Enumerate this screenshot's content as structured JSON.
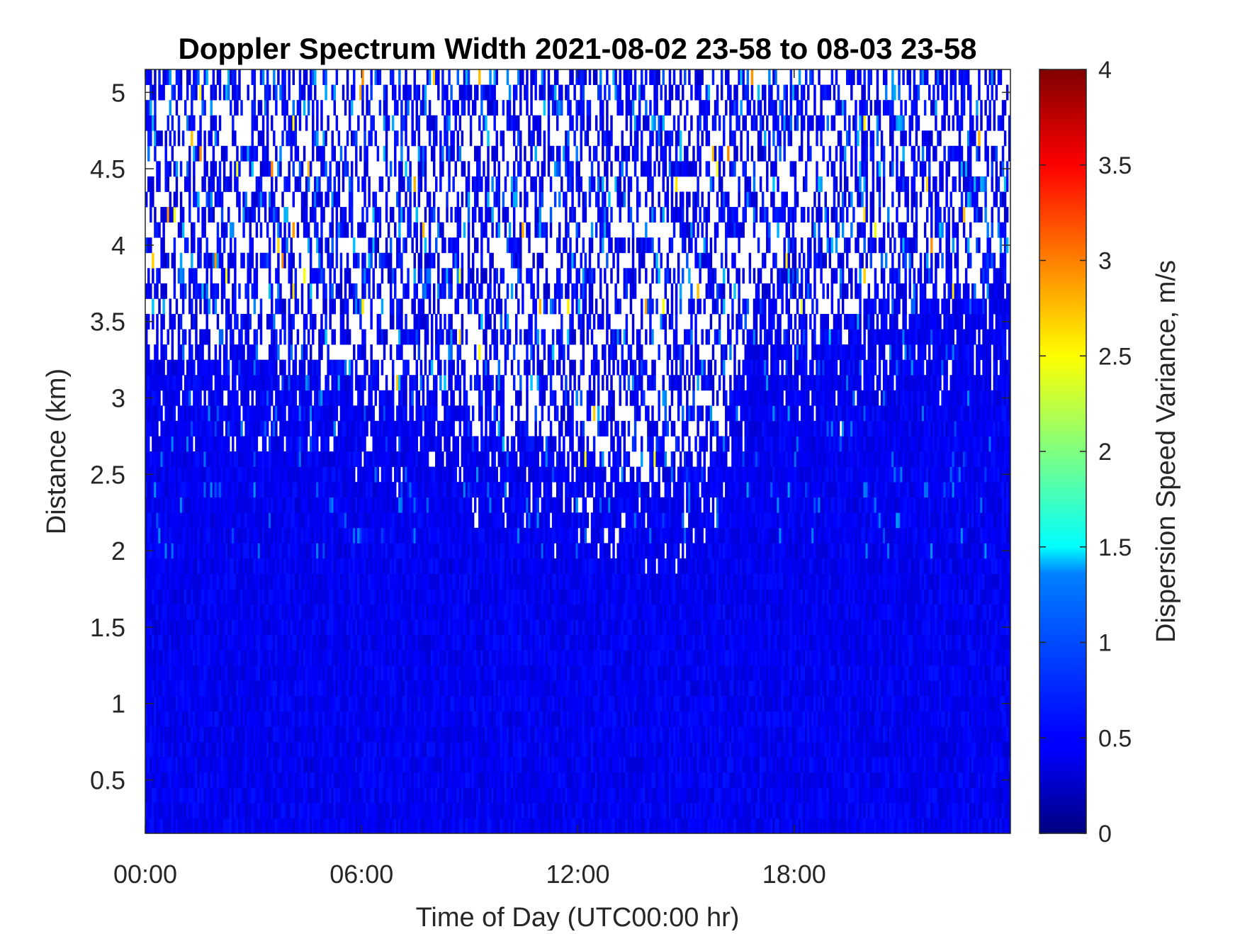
{
  "chart_data": {
    "type": "heatmap",
    "title": "Doppler Spectrum Width 2021-08-02 23-58 to 08-03 23-58",
    "xlabel": "Time of Day (UTC00:00 hr)",
    "ylabel": "Distance (km)",
    "x_ticks": [
      "00:00",
      "06:00",
      "12:00",
      "18:00"
    ],
    "x_tick_hours": [
      0,
      6,
      12,
      18
    ],
    "xlim_hours": [
      0,
      24
    ],
    "y_ticks": [
      "0.5",
      "1",
      "1.5",
      "2",
      "2.5",
      "3",
      "3.5",
      "4",
      "4.5",
      "5"
    ],
    "y_tick_values": [
      0.5,
      1,
      1.5,
      2,
      2.5,
      3,
      3.5,
      4,
      4.5,
      5
    ],
    "ylim": [
      0.15,
      5.15
    ],
    "colorbar": {
      "label": "Dispersion Speed Variance, m/s",
      "ticks": [
        "0",
        "0.5",
        "1",
        "1.5",
        "2",
        "2.5",
        "3",
        "3.5",
        "4"
      ],
      "tick_values": [
        0,
        0.5,
        1,
        1.5,
        2,
        2.5,
        3,
        3.5,
        4
      ],
      "range": [
        0,
        4
      ],
      "colormap": "jet"
    },
    "value_profile": {
      "typical_variance_below_2km": 0.45,
      "cloud_top_km_by_hour": [
        [
          0,
          3.3
        ],
        [
          3,
          3.3
        ],
        [
          6,
          3.1
        ],
        [
          9,
          2.9
        ],
        [
          12,
          2.6
        ],
        [
          14,
          2.5
        ],
        [
          16,
          2.8
        ],
        [
          17,
          3.7
        ],
        [
          18,
          3.5
        ],
        [
          19,
          3.4
        ],
        [
          21,
          3.7
        ],
        [
          24,
          3.7
        ]
      ],
      "above_cloud": "sparse scattered values mostly 0.3-1.2 m/s, rest empty"
    }
  }
}
